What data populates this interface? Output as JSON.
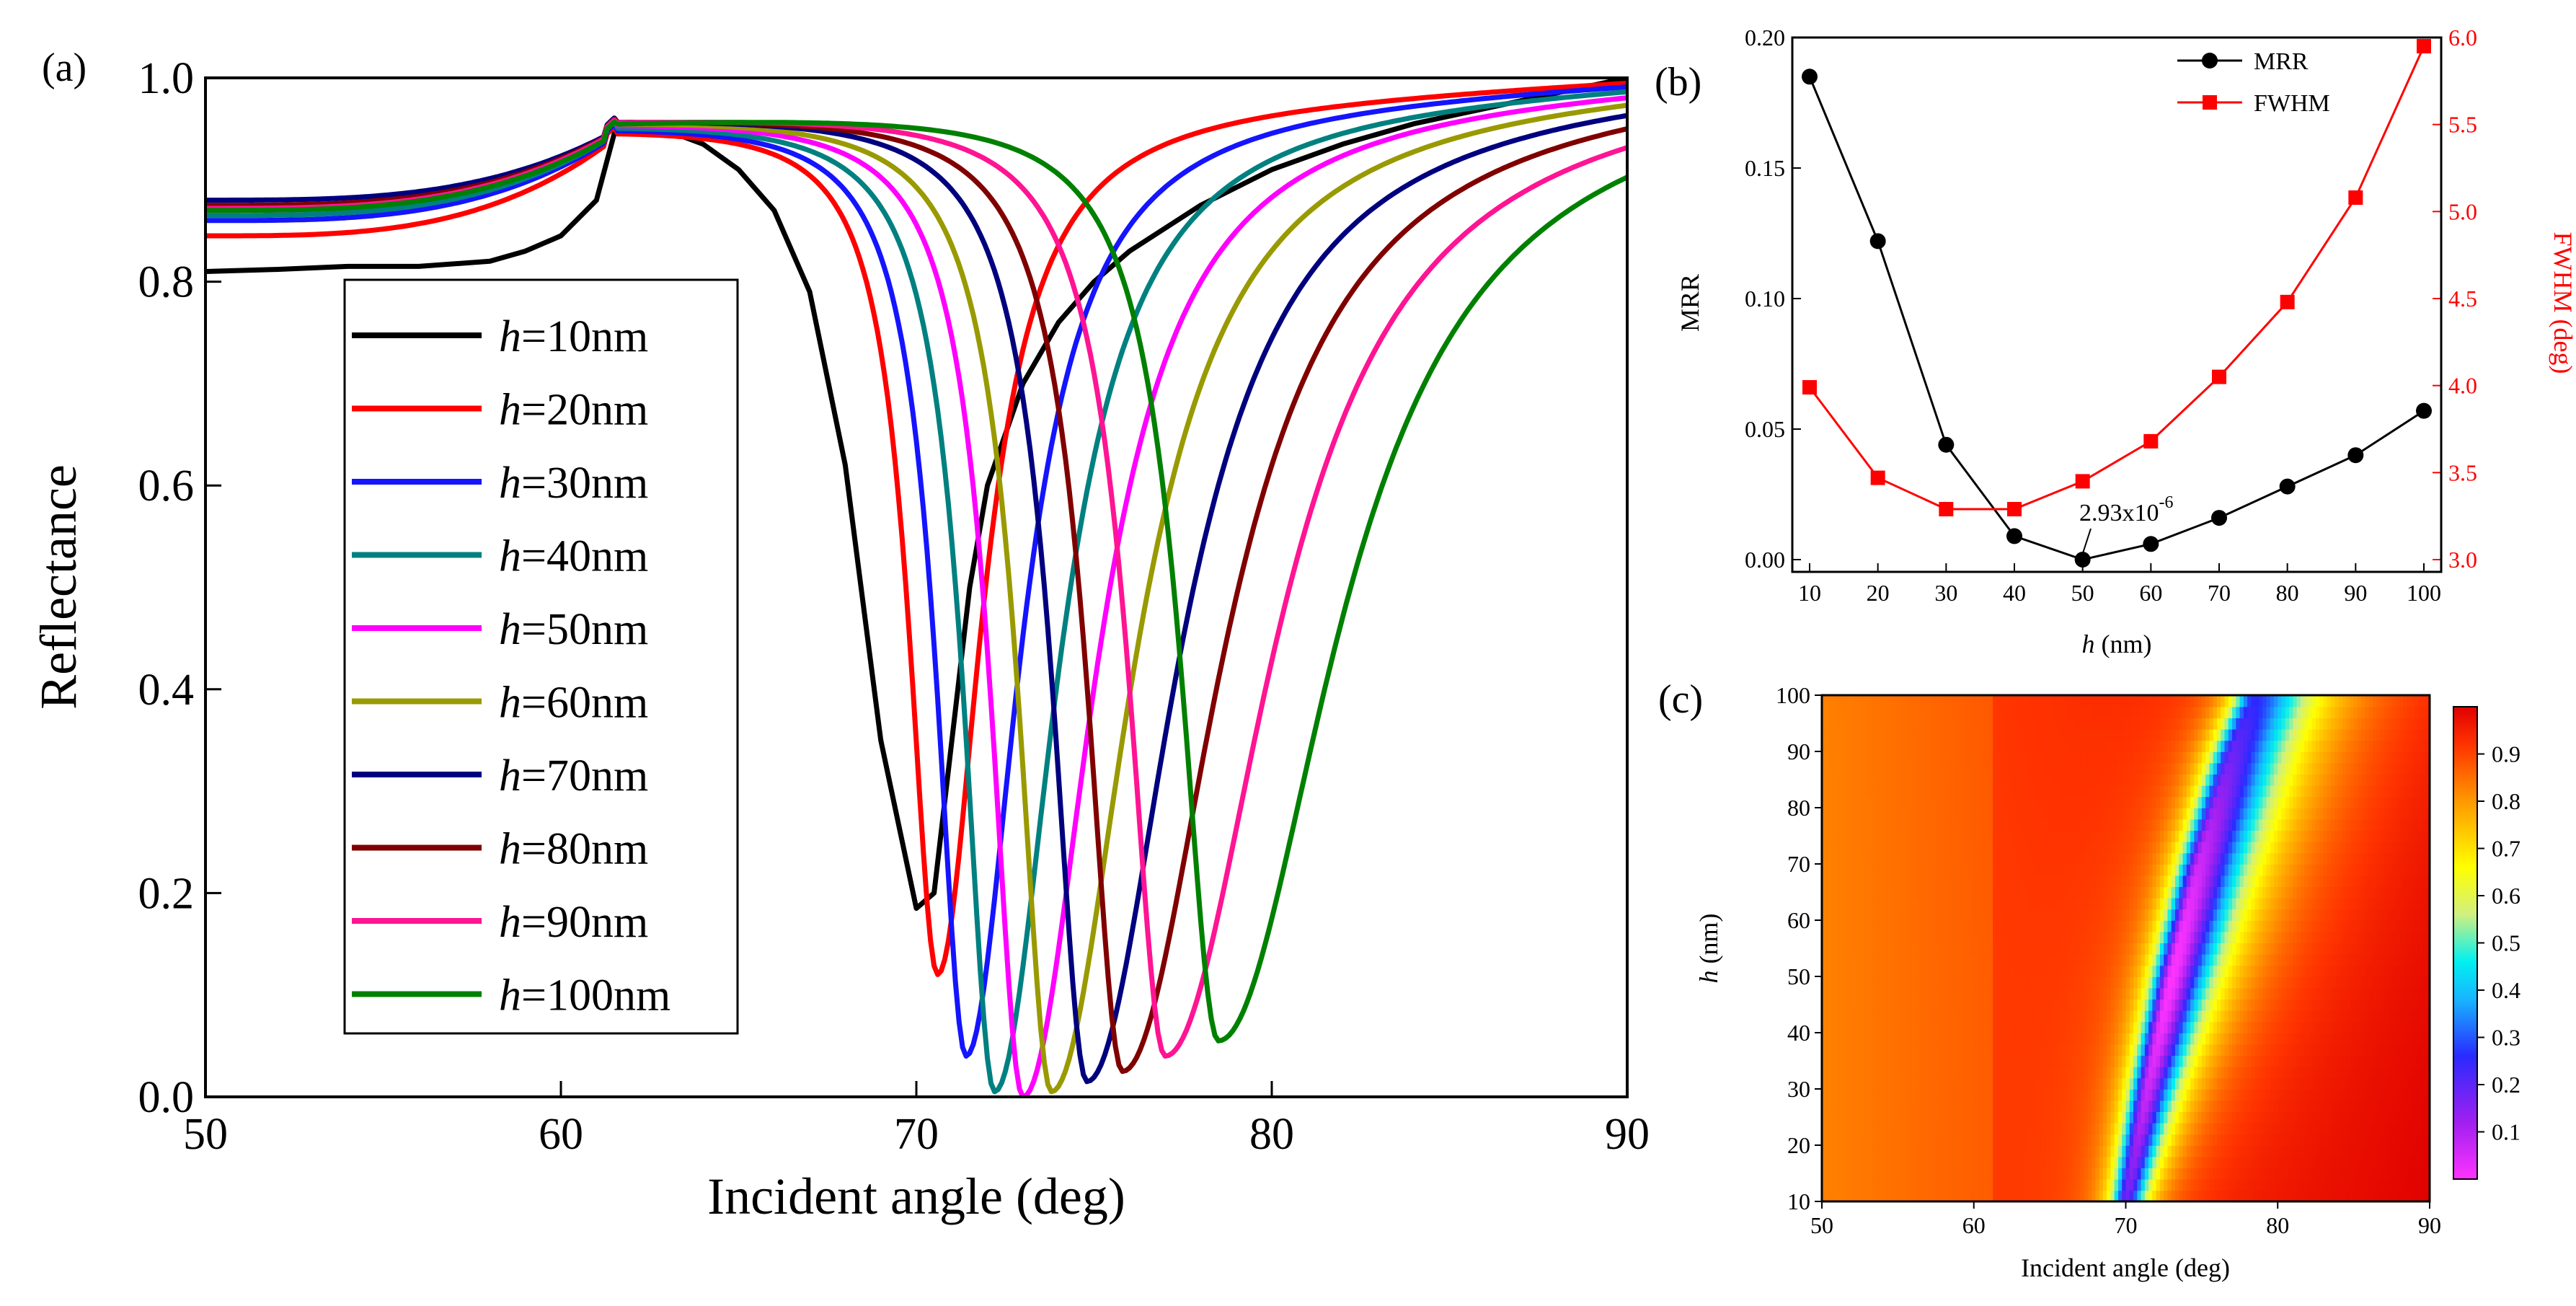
{
  "colors": {
    "h10": "#000000",
    "h20": "#ff0000",
    "h30": "#1414ff",
    "h40": "#008080",
    "h50": "#ff00ff",
    "h60": "#999900",
    "h70": "#00007f",
    "h80": "#800000",
    "h90": "#ff1493",
    "h100": "#008000",
    "mrr": "#000000",
    "fwhm": "#ff0000"
  },
  "chart_data": [
    {
      "panel": "(a)",
      "type": "line",
      "xlabel": "Incident angle (deg)",
      "ylabel": "Reflectance",
      "xlim": [
        50,
        90
      ],
      "ylim": [
        0.0,
        1.0
      ],
      "xticks": [
        "50",
        "60",
        "70",
        "80",
        "90"
      ],
      "yticks": [
        "0.0",
        "0.2",
        "0.4",
        "0.6",
        "0.8",
        "1.0"
      ],
      "legend_position": "center-left",
      "series": [
        {
          "name": "h=10nm",
          "h": 10,
          "color_key": "h10",
          "rmin": 0.185,
          "theta_min": 70.0,
          "r50": 0.81,
          "rpk": 0.952,
          "points": [
            [
              50,
              0.81
            ],
            [
              52,
              0.812
            ],
            [
              54,
              0.815
            ],
            [
              56,
              0.815
            ],
            [
              58,
              0.82
            ],
            [
              59,
              0.83
            ],
            [
              60,
              0.845
            ],
            [
              61,
              0.88
            ],
            [
              61.5,
              0.945
            ],
            [
              62,
              0.952
            ],
            [
              63,
              0.948
            ],
            [
              64,
              0.935
            ],
            [
              65,
              0.91
            ],
            [
              66,
              0.87
            ],
            [
              67,
              0.79
            ],
            [
              68,
              0.62
            ],
            [
              69,
              0.35
            ],
            [
              70,
              0.185
            ],
            [
              70.5,
              0.2
            ],
            [
              71,
              0.35
            ],
            [
              71.5,
              0.5
            ],
            [
              72,
              0.6
            ],
            [
              73,
              0.7
            ],
            [
              74,
              0.76
            ],
            [
              75,
              0.8
            ],
            [
              76,
              0.83
            ],
            [
              78,
              0.875
            ],
            [
              80,
              0.91
            ],
            [
              82,
              0.935
            ],
            [
              84,
              0.955
            ],
            [
              86,
              0.97
            ],
            [
              88,
              0.985
            ],
            [
              90,
              1.0
            ]
          ]
        },
        {
          "name": "h=20nm",
          "h": 20,
          "color_key": "h20",
          "rmin": 0.12,
          "theta_min": 70.6,
          "r50": 0.845,
          "rpk": 0.955
        },
        {
          "name": "h=30nm",
          "h": 30,
          "color_key": "h30",
          "rmin": 0.04,
          "theta_min": 71.4,
          "r50": 0.86,
          "rpk": 0.958
        },
        {
          "name": "h=40nm",
          "h": 40,
          "color_key": "h40",
          "rmin": 0.005,
          "theta_min": 72.2,
          "r50": 0.865,
          "rpk": 0.96
        },
        {
          "name": "h=50nm",
          "h": 50,
          "color_key": "h50",
          "rmin": 0.0,
          "theta_min": 73.0,
          "r50": 0.87,
          "rpk": 0.962
        },
        {
          "name": "h=60nm",
          "h": 60,
          "color_key": "h60",
          "rmin": 0.005,
          "theta_min": 73.8,
          "r50": 0.873,
          "rpk": 0.963
        },
        {
          "name": "h=70nm",
          "h": 70,
          "color_key": "h70",
          "rmin": 0.015,
          "theta_min": 74.8,
          "r50": 0.88,
          "rpk": 0.964
        },
        {
          "name": "h=80nm",
          "h": 80,
          "color_key": "h80",
          "rmin": 0.025,
          "theta_min": 75.8,
          "r50": 0.875,
          "rpk": 0.963
        },
        {
          "name": "h=90nm",
          "h": 90,
          "color_key": "h90",
          "rmin": 0.04,
          "theta_min": 77.0,
          "r50": 0.872,
          "rpk": 0.962
        },
        {
          "name": "h=100nm",
          "h": 100,
          "color_key": "h100",
          "rmin": 0.055,
          "theta_min": 78.5,
          "r50": 0.87,
          "rpk": 0.96
        }
      ]
    },
    {
      "panel": "(b)",
      "type": "line",
      "xlabel": "h (nm)",
      "ylabel_left": "MRR",
      "ylabel_right": "FWHM (deg)",
      "xlim": [
        10,
        100
      ],
      "ylim_left": [
        0.0,
        0.2
      ],
      "ylim_right": [
        3.0,
        6.0
      ],
      "xticks": [
        "10",
        "20",
        "30",
        "40",
        "50",
        "60",
        "70",
        "80",
        "90",
        "100"
      ],
      "yticks_left": [
        "0.00",
        "0.05",
        "0.10",
        "0.15",
        "0.20"
      ],
      "yticks_right": [
        "3.0",
        "3.5",
        "4.0",
        "4.5",
        "5.0",
        "5.5",
        "6.0"
      ],
      "legend_position": "top-right",
      "annotation": {
        "text_main": "2.93x10",
        "text_exp": "-6",
        "x": 50,
        "y": 0.0
      },
      "x": [
        10,
        20,
        30,
        40,
        50,
        60,
        70,
        80,
        90,
        100
      ],
      "series": [
        {
          "name": "MRR",
          "axis": "left",
          "marker": "circle",
          "color_key": "mrr",
          "values": [
            0.185,
            0.122,
            0.044,
            0.009,
            0.0,
            0.006,
            0.016,
            0.028,
            0.04,
            0.057
          ]
        },
        {
          "name": "FWHM",
          "axis": "right",
          "marker": "square",
          "color_key": "fwhm",
          "values": [
            3.99,
            3.47,
            3.29,
            3.29,
            3.45,
            3.68,
            4.05,
            4.48,
            5.08,
            5.95
          ]
        }
      ]
    },
    {
      "panel": "(c)",
      "type": "heatmap",
      "xlabel": "Incident angle (deg)",
      "ylabel": "h (nm)",
      "xlim": [
        50,
        90
      ],
      "ylim": [
        10,
        100
      ],
      "xticks": [
        "50",
        "60",
        "70",
        "80",
        "90"
      ],
      "yticks": [
        "10",
        "20",
        "30",
        "40",
        "50",
        "60",
        "70",
        "80",
        "90",
        "100"
      ],
      "colorbar_ticks": [
        "0.1",
        "0.2",
        "0.3",
        "0.4",
        "0.5",
        "0.6",
        "0.7",
        "0.8",
        "0.9"
      ],
      "colorbar_range": [
        0.0,
        1.0
      ],
      "valley_path": [
        [
          10,
          70.0
        ],
        [
          30,
          71.4
        ],
        [
          50,
          73.0
        ],
        [
          70,
          74.8
        ],
        [
          90,
          77.0
        ],
        [
          100,
          78.5
        ]
      ]
    }
  ]
}
